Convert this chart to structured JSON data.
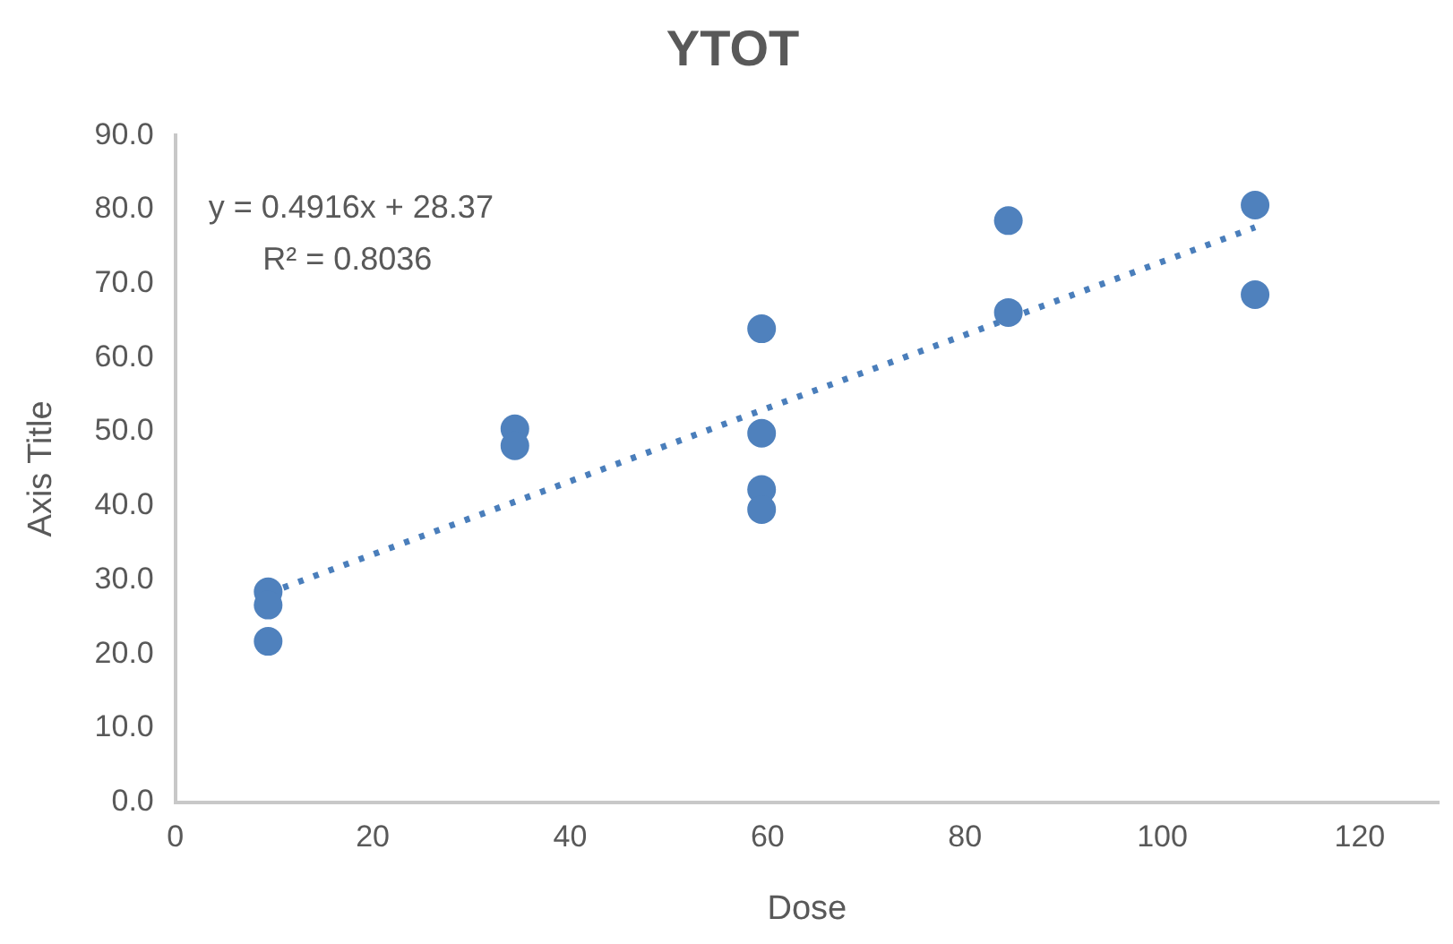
{
  "chart_data": {
    "type": "scatter",
    "title": "YTOT",
    "xlabel": "Dose",
    "ylabel": "Axis Title",
    "xlim": [
      0,
      128
    ],
    "xticks": [
      0,
      20,
      40,
      60,
      80,
      100,
      120
    ],
    "ylim": [
      0,
      90
    ],
    "yticks": [
      {
        "value": 0,
        "label": "0.0"
      },
      {
        "value": 10,
        "label": "10.0"
      },
      {
        "value": 20,
        "label": "20.0"
      },
      {
        "value": 30,
        "label": "30.0"
      },
      {
        "value": 40,
        "label": "40.0"
      },
      {
        "value": 50,
        "label": "50.0"
      },
      {
        "value": 60,
        "label": "60.0"
      },
      {
        "value": 70,
        "label": "70.0"
      },
      {
        "value": 80,
        "label": "80.0"
      },
      {
        "value": 90,
        "label": "90.0"
      }
    ],
    "grid": false,
    "legend": false,
    "marker": "circle",
    "annotations": [
      "y = 0.4916x + 28.37",
      "R² = 0.8036"
    ],
    "series": [
      {
        "color": "#4f81bd",
        "x": [
          9.4,
          9.4,
          9.4,
          34.4,
          34.4,
          59.4,
          59.4,
          59.4,
          59.4,
          84.4,
          84.4,
          109.4,
          109.4
        ],
        "values": [
          28.4,
          26.6,
          21.7,
          50.4,
          48.1,
          63.9,
          49.8,
          42.2,
          39.5,
          78.5,
          66.1,
          80.6,
          68.5
        ]
      },
      {
        "type": "line",
        "color": "#4a7ebb",
        "x": [
          9.4,
          109.4
        ],
        "values": [
          28.2,
          77.6
        ],
        "line_style": "dotted",
        "marker": "none"
      }
    ]
  }
}
